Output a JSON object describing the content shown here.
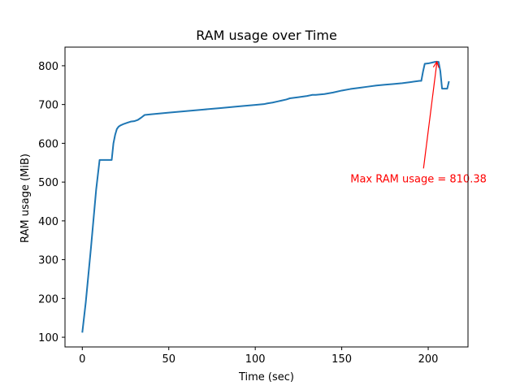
{
  "chart_data": {
    "type": "line",
    "title": "RAM usage over Time",
    "xlabel": "Time (sec)",
    "ylabel": "RAM usage (MiB)",
    "xlim": [
      -10,
      223
    ],
    "ylim": [
      75,
      848
    ],
    "xticks": [
      0,
      50,
      100,
      150,
      200
    ],
    "yticks": [
      100,
      200,
      300,
      400,
      500,
      600,
      700,
      800
    ],
    "grid": false,
    "line_color": "#1f77b4",
    "series": [
      {
        "x": [
          0,
          2,
          5,
          8,
          10,
          12,
          14,
          16,
          17,
          18,
          19,
          20,
          21,
          22,
          24,
          26,
          28,
          30,
          32,
          34,
          36,
          40,
          50,
          60,
          70,
          80,
          90,
          100,
          105,
          107,
          110,
          113,
          115,
          118,
          120,
          125,
          130,
          133,
          135,
          140,
          145,
          150,
          155,
          160,
          165,
          170,
          175,
          180,
          185,
          190,
          195,
          196,
          197,
          198,
          200,
          202,
          204,
          205,
          206,
          207,
          208,
          210,
          211,
          212
        ],
        "values": [
          112,
          190,
          330,
          480,
          557,
          557,
          557,
          557,
          557,
          600,
          622,
          637,
          643,
          646,
          650,
          653,
          656,
          657,
          660,
          666,
          673,
          675,
          679,
          683,
          687,
          691,
          695,
          699,
          701,
          703,
          705,
          708,
          710,
          713,
          716,
          719,
          722,
          725,
          725,
          727,
          731,
          736,
          740,
          743,
          746,
          749,
          751,
          753,
          755,
          758,
          761,
          761,
          785,
          805,
          806,
          808,
          810,
          810.38,
          810,
          786,
          741,
          741,
          741,
          760
        ]
      }
    ],
    "annotation": {
      "text": "Max RAM usage = 810.38",
      "color": "#ff0000",
      "point": [
        205,
        810.38
      ],
      "text_at": [
        155,
        510
      ]
    }
  }
}
